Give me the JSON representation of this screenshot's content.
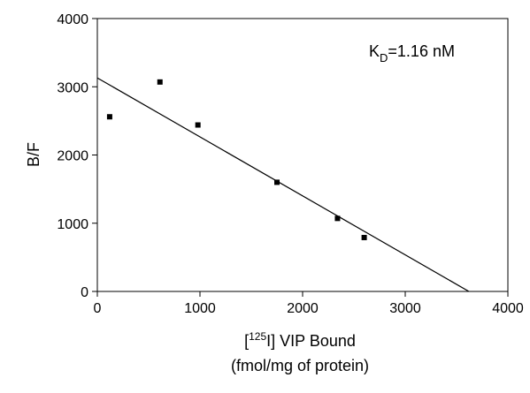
{
  "chart_data": {
    "type": "scatter",
    "title": "",
    "ylabel": "B/F",
    "xlabel": {
      "line1_prefix": "[",
      "line1_sup": "125",
      "line1_suffix": "I] VIP Bound",
      "line2": "(fmol/mg of protein)"
    },
    "xlim": [
      0,
      4000
    ],
    "ylim": [
      0,
      4000
    ],
    "x_ticks": [
      0,
      1000,
      2000,
      3000,
      4000
    ],
    "y_ticks": [
      0,
      1000,
      2000,
      3000,
      4000
    ],
    "x_tick_labels": [
      "0",
      "1000",
      "2000",
      "3000",
      "4000"
    ],
    "y_tick_labels": [
      "0",
      "1000",
      "2000",
      "3000",
      "4000"
    ],
    "grid": false,
    "points": [
      {
        "x": 120,
        "y": 2560
      },
      {
        "x": 610,
        "y": 3070
      },
      {
        "x": 980,
        "y": 2440
      },
      {
        "x": 1750,
        "y": 1600
      },
      {
        "x": 2340,
        "y": 1070
      },
      {
        "x": 2600,
        "y": 790
      }
    ],
    "fit_line": {
      "start": {
        "x": 0,
        "y": 3130
      },
      "end": {
        "x": 3620,
        "y": 0
      }
    },
    "annotation": {
      "main": "K",
      "sub": "D",
      "rest": "=1.16 nM"
    }
  }
}
